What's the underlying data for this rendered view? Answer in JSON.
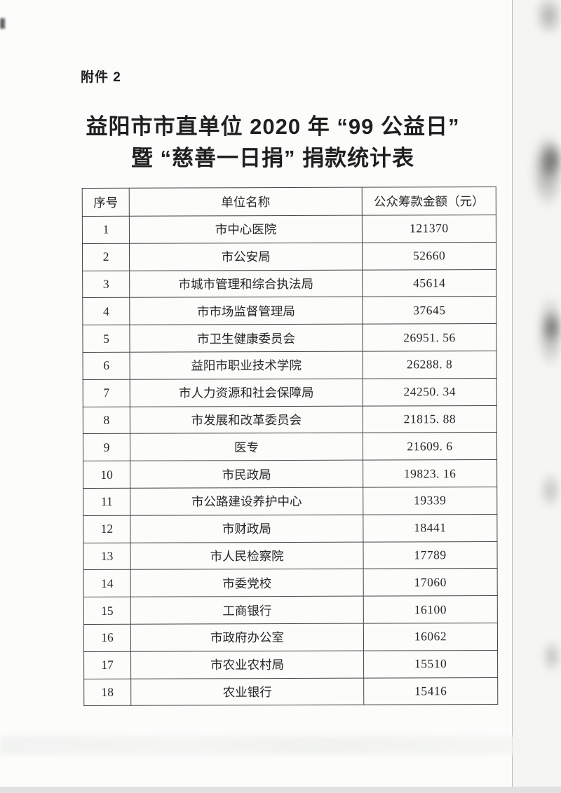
{
  "page": {
    "attachment_label": "附件 2",
    "title_line1": "益阳市市直单位 2020 年 “99 公益日”",
    "title_line2": "暨 “慈善一日捐” 捐款统计表"
  },
  "table": {
    "headers": [
      "序号",
      "单位名称",
      "公众筹款金额（元）"
    ],
    "rows": [
      {
        "no": "1",
        "unit": "市中心医院",
        "amount": "121370"
      },
      {
        "no": "2",
        "unit": "市公安局",
        "amount": "52660"
      },
      {
        "no": "3",
        "unit": "市城市管理和综合执法局",
        "amount": "45614"
      },
      {
        "no": "4",
        "unit": "市市场监督管理局",
        "amount": "37645"
      },
      {
        "no": "5",
        "unit": "市卫生健康委员会",
        "amount": "26951. 56"
      },
      {
        "no": "6",
        "unit": "益阳市职业技术学院",
        "amount": "26288. 8"
      },
      {
        "no": "7",
        "unit": "市人力资源和社会保障局",
        "amount": "24250. 34"
      },
      {
        "no": "8",
        "unit": "市发展和改革委员会",
        "amount": "21815. 88"
      },
      {
        "no": "9",
        "unit": "医专",
        "amount": "21609. 6"
      },
      {
        "no": "10",
        "unit": "市民政局",
        "amount": "19823. 16"
      },
      {
        "no": "11",
        "unit": "市公路建设养护中心",
        "amount": "19339"
      },
      {
        "no": "12",
        "unit": "市财政局",
        "amount": "18441"
      },
      {
        "no": "13",
        "unit": "市人民检察院",
        "amount": "17789"
      },
      {
        "no": "14",
        "unit": "市委党校",
        "amount": "17060"
      },
      {
        "no": "15",
        "unit": "工商银行",
        "amount": "16100"
      },
      {
        "no": "16",
        "unit": "市政府办公室",
        "amount": "16062"
      },
      {
        "no": "17",
        "unit": "市农业农村局",
        "amount": "15510"
      },
      {
        "no": "18",
        "unit": "农业银行",
        "amount": "15416"
      }
    ]
  },
  "colors": {
    "paper": "#fcfcfb",
    "ink": "#262626",
    "table-border": "#444444",
    "page-edge": "#b3b3ad",
    "margin-bg": "#f5f5f3",
    "bottom-band": "#dfe2e0"
  }
}
